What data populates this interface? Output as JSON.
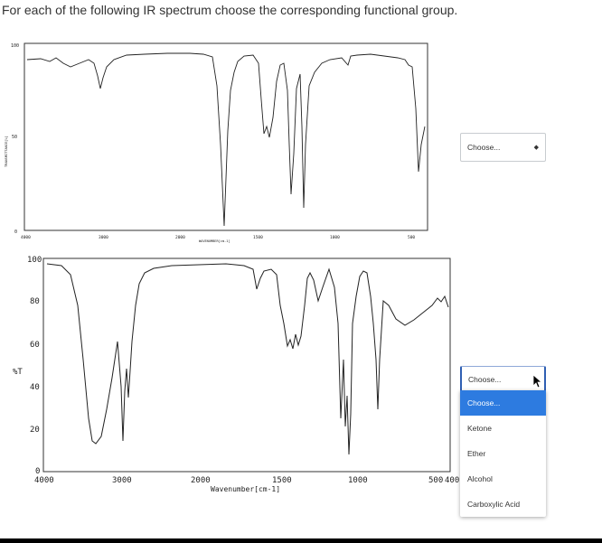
{
  "question": "For each of the following IR spectrum choose the corresponding functional group.",
  "spectrum1": {
    "y_ticks": [
      "100",
      "50",
      "0"
    ],
    "x_ticks": [
      "4000",
      "3000",
      "2000",
      "1500",
      "1000",
      "500"
    ],
    "ylabel": "TRANSMITTANCE[%]",
    "xlabel": "WAVENUMBER[cm-1]"
  },
  "spectrum2": {
    "y_ticks": [
      "100",
      "80",
      "60",
      "40",
      "20",
      "0"
    ],
    "x_ticks": [
      "4000",
      "3000",
      "2000",
      "1500",
      "1000",
      "500",
      "400"
    ],
    "ylabel": "%T",
    "xlabel": "Wavenumber[cm-1]"
  },
  "select1": {
    "value": "Choose..."
  },
  "select2": {
    "value": "Choose..."
  },
  "dropdown": {
    "options": [
      "Choose...",
      "Ketone",
      "Ether",
      "Alcohol",
      "Carboxylic Acid"
    ],
    "highlighted": "Choose..."
  },
  "icons": {
    "select_arrow": "up-down-caret-icon",
    "pointer": "mouse-cursor-icon"
  }
}
